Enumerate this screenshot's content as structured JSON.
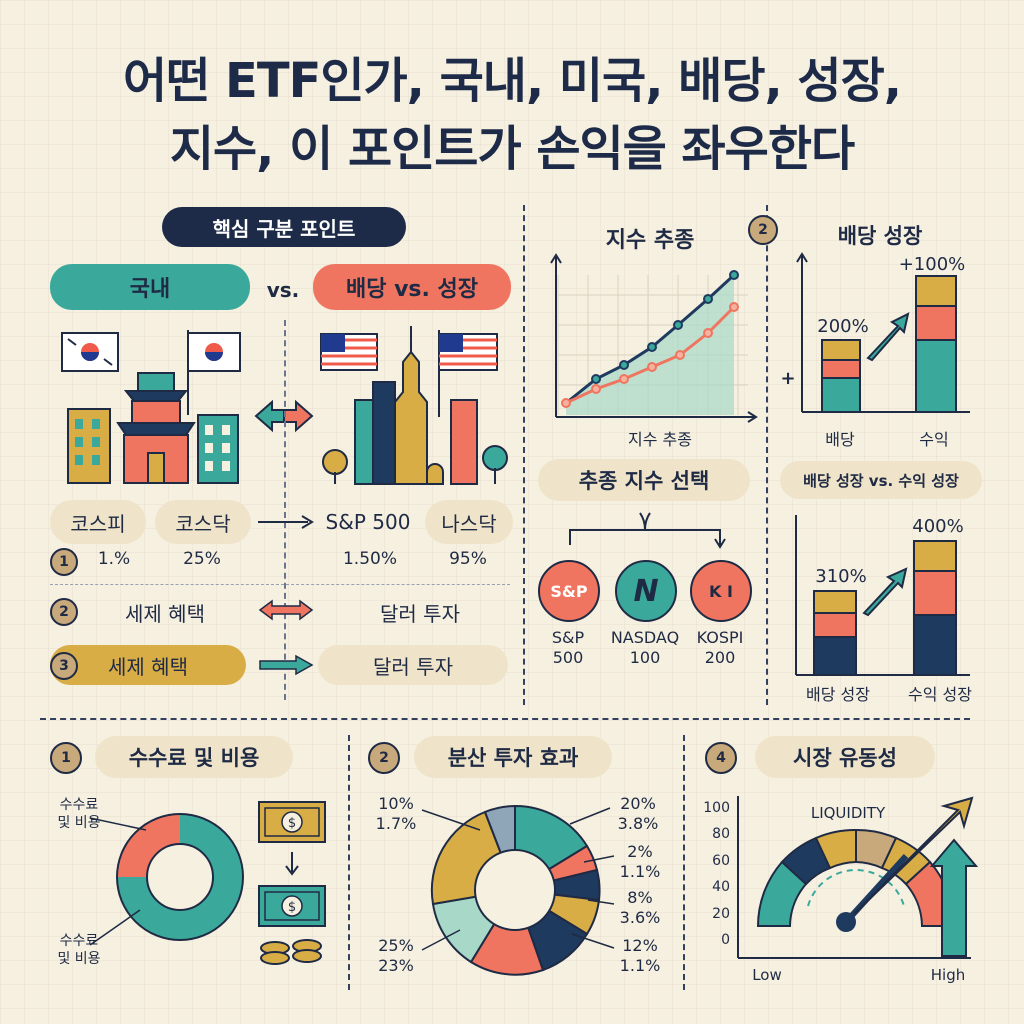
{
  "title": {
    "line1": "어떤 ETF인가, 국내, 미국, 배당, 성장,",
    "line2": "지수, 이 포인트가 손익을 좌우한다"
  },
  "key_points": {
    "header": "핵심 구분 포인트",
    "domestic_label": "국내",
    "vs_label": "vs.",
    "dividend_growth_label": "배당 vs. 성장",
    "row1": [
      "코스피",
      "코스닥",
      "S&P 500",
      "나스닥"
    ],
    "row2_num": "1",
    "row2": [
      "1.%",
      "25%",
      "1.50%",
      "95%"
    ],
    "row3_num": "2",
    "row3": [
      "세제 혜택",
      "달러 투자"
    ],
    "row4_num": "3",
    "row4": [
      "세제 혜택",
      "달러 투자"
    ]
  },
  "index_tracking": {
    "title": "지수 추종",
    "xlabel": "지수 추종",
    "select_label": "추종 지수 선택",
    "logos": [
      "S&P",
      "N",
      "K I"
    ],
    "names": [
      [
        "S&P",
        "500"
      ],
      [
        "NASDAQ",
        "100"
      ],
      [
        "KOSPI",
        "200"
      ]
    ]
  },
  "dividend_growth": {
    "num": "2",
    "title": "배당 성장",
    "plus": "+",
    "chart1": {
      "left_value": "200%",
      "right_value": "+100%",
      "left_label": "배당",
      "right_label": "수익"
    },
    "subtitle": "배당 성장 vs. 수익 성장",
    "chart2": {
      "left_value": "310%",
      "right_value": "400%",
      "left_label": "배당 성장",
      "right_label": "수익 성장"
    }
  },
  "fees": {
    "num": "1",
    "title": "수수료 및 비용",
    "label_top": [
      "수수료",
      "및 비용"
    ],
    "label_bottom": [
      "수수료",
      "및 비용"
    ]
  },
  "diversification": {
    "num": "2",
    "title": "분산 투자 효과",
    "left_top": [
      "10%",
      "1.7%"
    ],
    "left_bottom": [
      "25%",
      "23%"
    ],
    "right": [
      [
        "20%",
        "3.8%"
      ],
      [
        "2%",
        "1.1%"
      ],
      [
        "8%",
        "3.6%"
      ],
      [
        "12%",
        "1.1%"
      ]
    ]
  },
  "liquidity": {
    "num": "4",
    "title": "시장 유동성",
    "gauge_label": "LIQUIDITY",
    "y_ticks": [
      "100",
      "80",
      "60",
      "40",
      "20",
      "0"
    ],
    "low": "Low",
    "high": "High"
  },
  "colors": {
    "teal": "#3aa99b",
    "coral": "#ef7560",
    "mustard": "#d8ad45",
    "navy": "#1f3a5f",
    "paper": "#f6f0e0"
  }
}
